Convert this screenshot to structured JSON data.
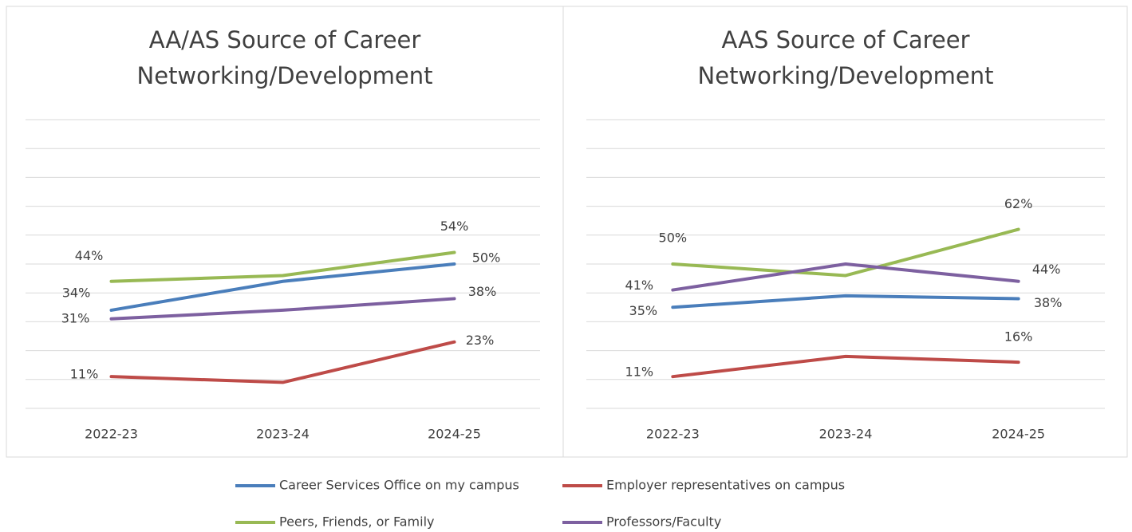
{
  "chart_data": [
    {
      "type": "line",
      "title": "AA/AS Source of Career Networking/Development",
      "title_lines": [
        "AA/AS Source of Career",
        "Networking/Development"
      ],
      "categories": [
        "2022-23",
        "2023-24",
        "2024-25"
      ],
      "ylim": [
        0,
        100
      ],
      "yticks": [
        0,
        10,
        20,
        30,
        40,
        50,
        60,
        70,
        80,
        90,
        100
      ],
      "grid": true,
      "series": [
        {
          "name": "Career Services Office on my campus",
          "color": "#4a7ebb",
          "values": [
            34,
            44,
            50
          ],
          "value_labels": [
            "34%",
            null,
            "50%"
          ]
        },
        {
          "name": "Employer representatives on campus",
          "color": "#be4b48",
          "values": [
            11,
            9,
            23
          ],
          "value_labels": [
            "11%",
            null,
            "23%"
          ]
        },
        {
          "name": "Peers, Friends, or Family",
          "color": "#98b954",
          "values": [
            44,
            46,
            54
          ],
          "value_labels": [
            "44%",
            null,
            "54%"
          ]
        },
        {
          "name": "Professors/Faculty",
          "color": "#7d60a0",
          "values": [
            31,
            34,
            38
          ],
          "value_labels": [
            "31%",
            null,
            "38%"
          ]
        }
      ]
    },
    {
      "type": "line",
      "title": "AAS Source of Career Networking/Development",
      "title_lines": [
        "AAS Source of Career",
        "Networking/Development"
      ],
      "categories": [
        "2022-23",
        "2023-24",
        "2024-25"
      ],
      "ylim": [
        0,
        100
      ],
      "yticks": [
        0,
        10,
        20,
        30,
        40,
        50,
        60,
        70,
        80,
        90,
        100
      ],
      "grid": true,
      "series": [
        {
          "color": "#4a7ebb",
          "values": [
            35,
            39,
            38
          ],
          "value_labels": [
            "35%",
            null,
            "38%"
          ]
        },
        {
          "color": "#be4b48",
          "values": [
            11,
            18,
            16
          ],
          "value_labels": [
            "11%",
            null,
            "16%"
          ]
        },
        {
          "color": "#98b954",
          "values": [
            50,
            46,
            62
          ],
          "value_labels": [
            "50%",
            null,
            "62%"
          ]
        },
        {
          "color": "#7d60a0",
          "values": [
            41,
            50,
            44
          ],
          "value_labels": [
            "41%",
            null,
            "44%"
          ]
        }
      ]
    }
  ]
}
